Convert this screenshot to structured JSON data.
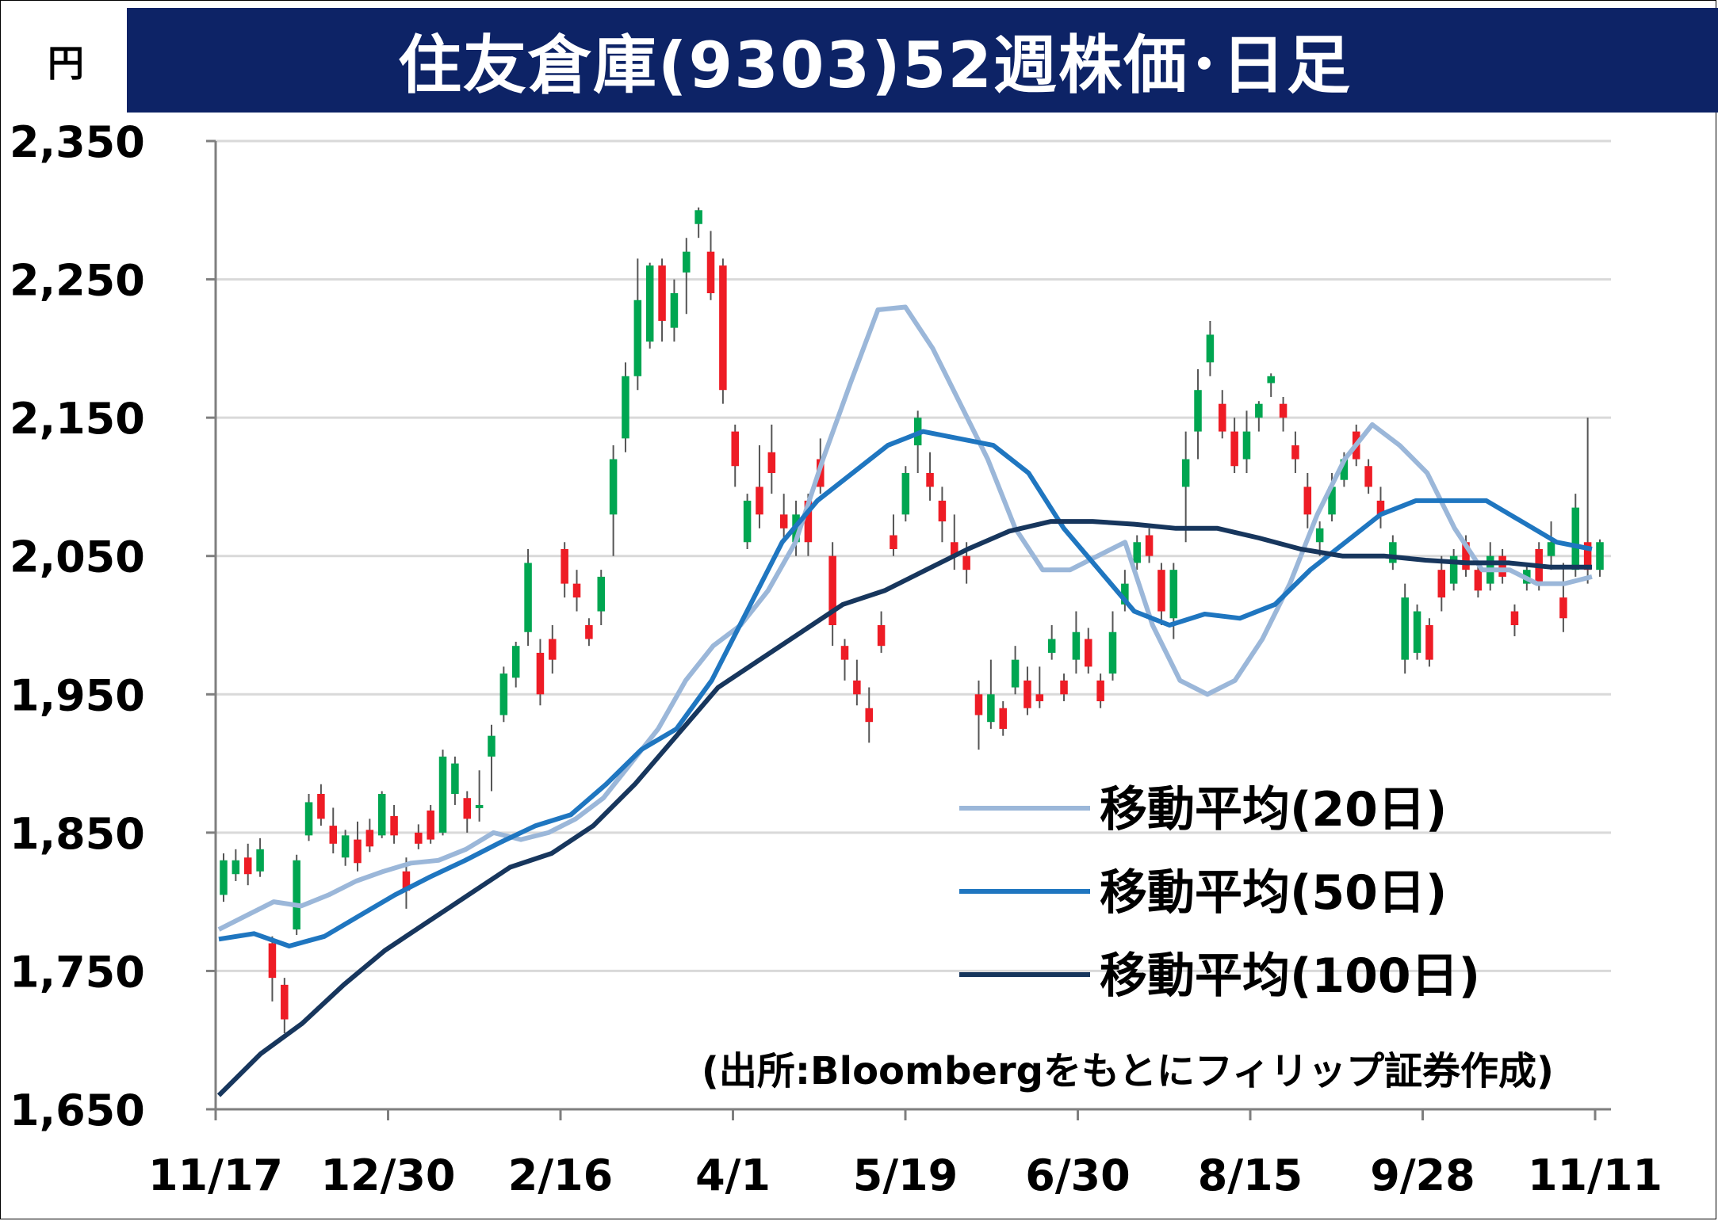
{
  "header": {
    "unit": "円",
    "title": "住友倉庫(9303)52週株価･日足"
  },
  "source_note": "(出所:Bloombergをもとにフィリップ証券作成)",
  "colors": {
    "title_bg": "#0d2366",
    "up": "#00a651",
    "down": "#ee1c25",
    "ma20": "#9bb7d9",
    "ma50": "#1f76c0",
    "ma100": "#17365d",
    "grid": "#d9d9d9"
  },
  "chart_data": {
    "type": "candlestick",
    "title": "住友倉庫(9303)52週株価･日足",
    "ylabel": "円",
    "ylim": [
      1650,
      2350
    ],
    "yticks": [
      1650,
      1750,
      1850,
      1950,
      2050,
      2150,
      2250,
      2350
    ],
    "ytick_labels": [
      "1,650",
      "1,750",
      "1,850",
      "1,950",
      "2,050",
      "2,150",
      "2,250",
      "2,350"
    ],
    "x_tick_labels": [
      "11/17",
      "12/30",
      "2/16",
      "4/1",
      "5/19",
      "6/30",
      "8/15",
      "9/28",
      "11/11"
    ],
    "grid": true,
    "legend_position": "bottom-right",
    "series": [
      {
        "name": "移動平均(20日)",
        "color": "#9bb7d9",
        "values": [
          1780,
          1790,
          1800,
          1797,
          1805,
          1815,
          1822,
          1828,
          1830,
          1838,
          1850,
          1845,
          1850,
          1860,
          1875,
          1900,
          1925,
          1960,
          1985,
          2000,
          2025,
          2060,
          2120,
          2175,
          2228,
          2230,
          2200,
          2160,
          2120,
          2070,
          2040,
          2040,
          2050,
          2060,
          2000,
          1960,
          1950,
          1960,
          1990,
          2030,
          2080,
          2120,
          2145,
          2130,
          2110,
          2070,
          2040,
          2040,
          2030,
          2030,
          2035
        ]
      },
      {
        "name": "移動平均(50日)",
        "color": "#1f76c0",
        "values": [
          1773,
          1777,
          1768,
          1775,
          1790,
          1805,
          1818,
          1830,
          1843,
          1855,
          1863,
          1885,
          1910,
          1925,
          1960,
          2010,
          2060,
          2090,
          2110,
          2130,
          2140,
          2135,
          2130,
          2110,
          2070,
          2040,
          2010,
          2000,
          2008,
          2005,
          2015,
          2040,
          2060,
          2080,
          2090,
          2090,
          2090,
          2075,
          2060,
          2055
        ]
      },
      {
        "name": "移動平均(100日)",
        "color": "#17365d",
        "values": [
          1660,
          1690,
          1712,
          1740,
          1765,
          1785,
          1805,
          1825,
          1835,
          1855,
          1885,
          1920,
          1955,
          1975,
          1995,
          2015,
          2025,
          2040,
          2055,
          2068,
          2075,
          2075,
          2073,
          2070,
          2070,
          2063,
          2055,
          2050,
          2050,
          2047,
          2045,
          2045,
          2042,
          2042
        ]
      }
    ],
    "candles": [
      [
        1805,
        1830,
        1800,
        1835
      ],
      [
        1820,
        1830,
        1815,
        1838
      ],
      [
        1832,
        1820,
        1812,
        1842
      ],
      [
        1822,
        1838,
        1818,
        1846
      ],
      [
        1770,
        1745,
        1728,
        1775
      ],
      [
        1740,
        1715,
        1705,
        1745
      ],
      [
        1780,
        1830,
        1776,
        1834
      ],
      [
        1848,
        1872,
        1844,
        1878
      ],
      [
        1878,
        1860,
        1855,
        1885
      ],
      [
        1855,
        1842,
        1835,
        1868
      ],
      [
        1832,
        1848,
        1826,
        1852
      ],
      [
        1845,
        1828,
        1822,
        1858
      ],
      [
        1852,
        1840,
        1836,
        1860
      ],
      [
        1848,
        1878,
        1846,
        1880
      ],
      [
        1862,
        1848,
        1842,
        1870
      ],
      [
        1822,
        1808,
        1795,
        1832
      ],
      [
        1850,
        1842,
        1838,
        1856
      ],
      [
        1866,
        1845,
        1842,
        1870
      ],
      [
        1850,
        1905,
        1848,
        1910
      ],
      [
        1878,
        1900,
        1870,
        1905
      ],
      [
        1875,
        1860,
        1850,
        1880
      ],
      [
        1870,
        1870,
        1858,
        1895
      ],
      [
        1905,
        1920,
        1880,
        1928
      ],
      [
        1935,
        1965,
        1930,
        1970
      ],
      [
        1962,
        1985,
        1955,
        1988
      ],
      [
        1995,
        2045,
        1985,
        2055
      ],
      [
        1980,
        1950,
        1942,
        1990
      ],
      [
        1990,
        1975,
        1965,
        2000
      ],
      [
        2055,
        2030,
        2020,
        2060
      ],
      [
        2030,
        2020,
        2010,
        2040
      ],
      [
        2000,
        1990,
        1985,
        2005
      ],
      [
        2010,
        2035,
        2000,
        2040
      ],
      [
        2080,
        2120,
        2050,
        2130
      ],
      [
        2135,
        2180,
        2125,
        2190
      ],
      [
        2180,
        2235,
        2170,
        2265
      ],
      [
        2205,
        2260,
        2200,
        2262
      ],
      [
        2260,
        2220,
        2205,
        2265
      ],
      [
        2215,
        2240,
        2205,
        2250
      ],
      [
        2255,
        2270,
        2225,
        2280
      ],
      [
        2290,
        2300,
        2280,
        2302
      ],
      [
        2270,
        2240,
        2235,
        2285
      ],
      [
        2260,
        2170,
        2160,
        2265
      ],
      [
        2140,
        2115,
        2100,
        2145
      ],
      [
        2060,
        2090,
        2055,
        2095
      ],
      [
        2100,
        2080,
        2070,
        2130
      ],
      [
        2125,
        2110,
        2095,
        2145
      ],
      [
        2080,
        2070,
        2060,
        2095
      ],
      [
        2060,
        2080,
        2050,
        2090
      ],
      [
        2090,
        2060,
        2050,
        2095
      ],
      [
        2120,
        2100,
        2095,
        2135
      ],
      [
        2050,
        2000,
        1985,
        2060
      ],
      [
        1985,
        1975,
        1960,
        1990
      ],
      [
        1960,
        1950,
        1942,
        1975
      ],
      [
        1940,
        1930,
        1915,
        1955
      ],
      [
        2000,
        1985,
        1980,
        2010
      ],
      [
        2065,
        2055,
        2050,
        2080
      ],
      [
        2080,
        2110,
        2075,
        2115
      ],
      [
        2130,
        2150,
        2110,
        2155
      ],
      [
        2110,
        2100,
        2090,
        2125
      ],
      [
        2090,
        2075,
        2060,
        2100
      ],
      [
        2060,
        2050,
        2040,
        2080
      ],
      [
        2050,
        2040,
        2030,
        2060
      ],
      [
        1950,
        1935,
        1910,
        1960
      ],
      [
        1930,
        1950,
        1925,
        1975
      ],
      [
        1940,
        1925,
        1920,
        1945
      ],
      [
        1955,
        1975,
        1950,
        1985
      ],
      [
        1960,
        1940,
        1935,
        1970
      ],
      [
        1950,
        1945,
        1940,
        1970
      ],
      [
        1980,
        1990,
        1975,
        2000
      ],
      [
        1960,
        1950,
        1945,
        1965
      ],
      [
        1975,
        1995,
        1965,
        2010
      ],
      [
        1990,
        1970,
        1965,
        1998
      ],
      [
        1960,
        1945,
        1940,
        1965
      ],
      [
        1965,
        1995,
        1960,
        2010
      ],
      [
        2015,
        2030,
        2010,
        2040
      ],
      [
        2045,
        2060,
        2040,
        2065
      ],
      [
        2065,
        2050,
        2045,
        2070
      ],
      [
        2040,
        2010,
        2000,
        2045
      ],
      [
        2005,
        2040,
        1990,
        2045
      ],
      [
        2100,
        2120,
        2060,
        2140
      ],
      [
        2140,
        2170,
        2120,
        2185
      ],
      [
        2190,
        2210,
        2180,
        2220
      ],
      [
        2160,
        2140,
        2135,
        2170
      ],
      [
        2140,
        2115,
        2110,
        2150
      ],
      [
        2120,
        2140,
        2110,
        2155
      ],
      [
        2150,
        2160,
        2140,
        2162
      ],
      [
        2175,
        2180,
        2165,
        2182
      ],
      [
        2160,
        2150,
        2140,
        2165
      ],
      [
        2130,
        2120,
        2110,
        2140
      ],
      [
        2100,
        2080,
        2070,
        2110
      ],
      [
        2060,
        2070,
        2050,
        2075
      ],
      [
        2080,
        2100,
        2075,
        2110
      ],
      [
        2105,
        2120,
        2100,
        2125
      ],
      [
        2140,
        2120,
        2115,
        2145
      ],
      [
        2115,
        2100,
        2095,
        2120
      ],
      [
        2090,
        2080,
        2070,
        2100
      ],
      [
        2045,
        2060,
        2040,
        2065
      ],
      [
        1975,
        2020,
        1965,
        2030
      ],
      [
        1980,
        2010,
        1975,
        2015
      ],
      [
        2000,
        1975,
        1970,
        2005
      ],
      [
        2040,
        2020,
        2010,
        2050
      ],
      [
        2030,
        2050,
        2025,
        2055
      ],
      [
        2060,
        2040,
        2035,
        2065
      ],
      [
        2040,
        2025,
        2020,
        2045
      ],
      [
        2030,
        2050,
        2025,
        2060
      ],
      [
        2050,
        2035,
        2030,
        2055
      ],
      [
        2010,
        2000,
        1992,
        2015
      ],
      [
        2030,
        2040,
        2025,
        2045
      ],
      [
        2055,
        2030,
        2025,
        2060
      ],
      [
        2050,
        2060,
        2040,
        2075
      ],
      [
        2020,
        2005,
        1995,
        2045
      ],
      [
        2040,
        2085,
        2035,
        2095
      ],
      [
        2060,
        2040,
        2030,
        2150
      ],
      [
        2040,
        2060,
        2035,
        2062
      ]
    ]
  }
}
